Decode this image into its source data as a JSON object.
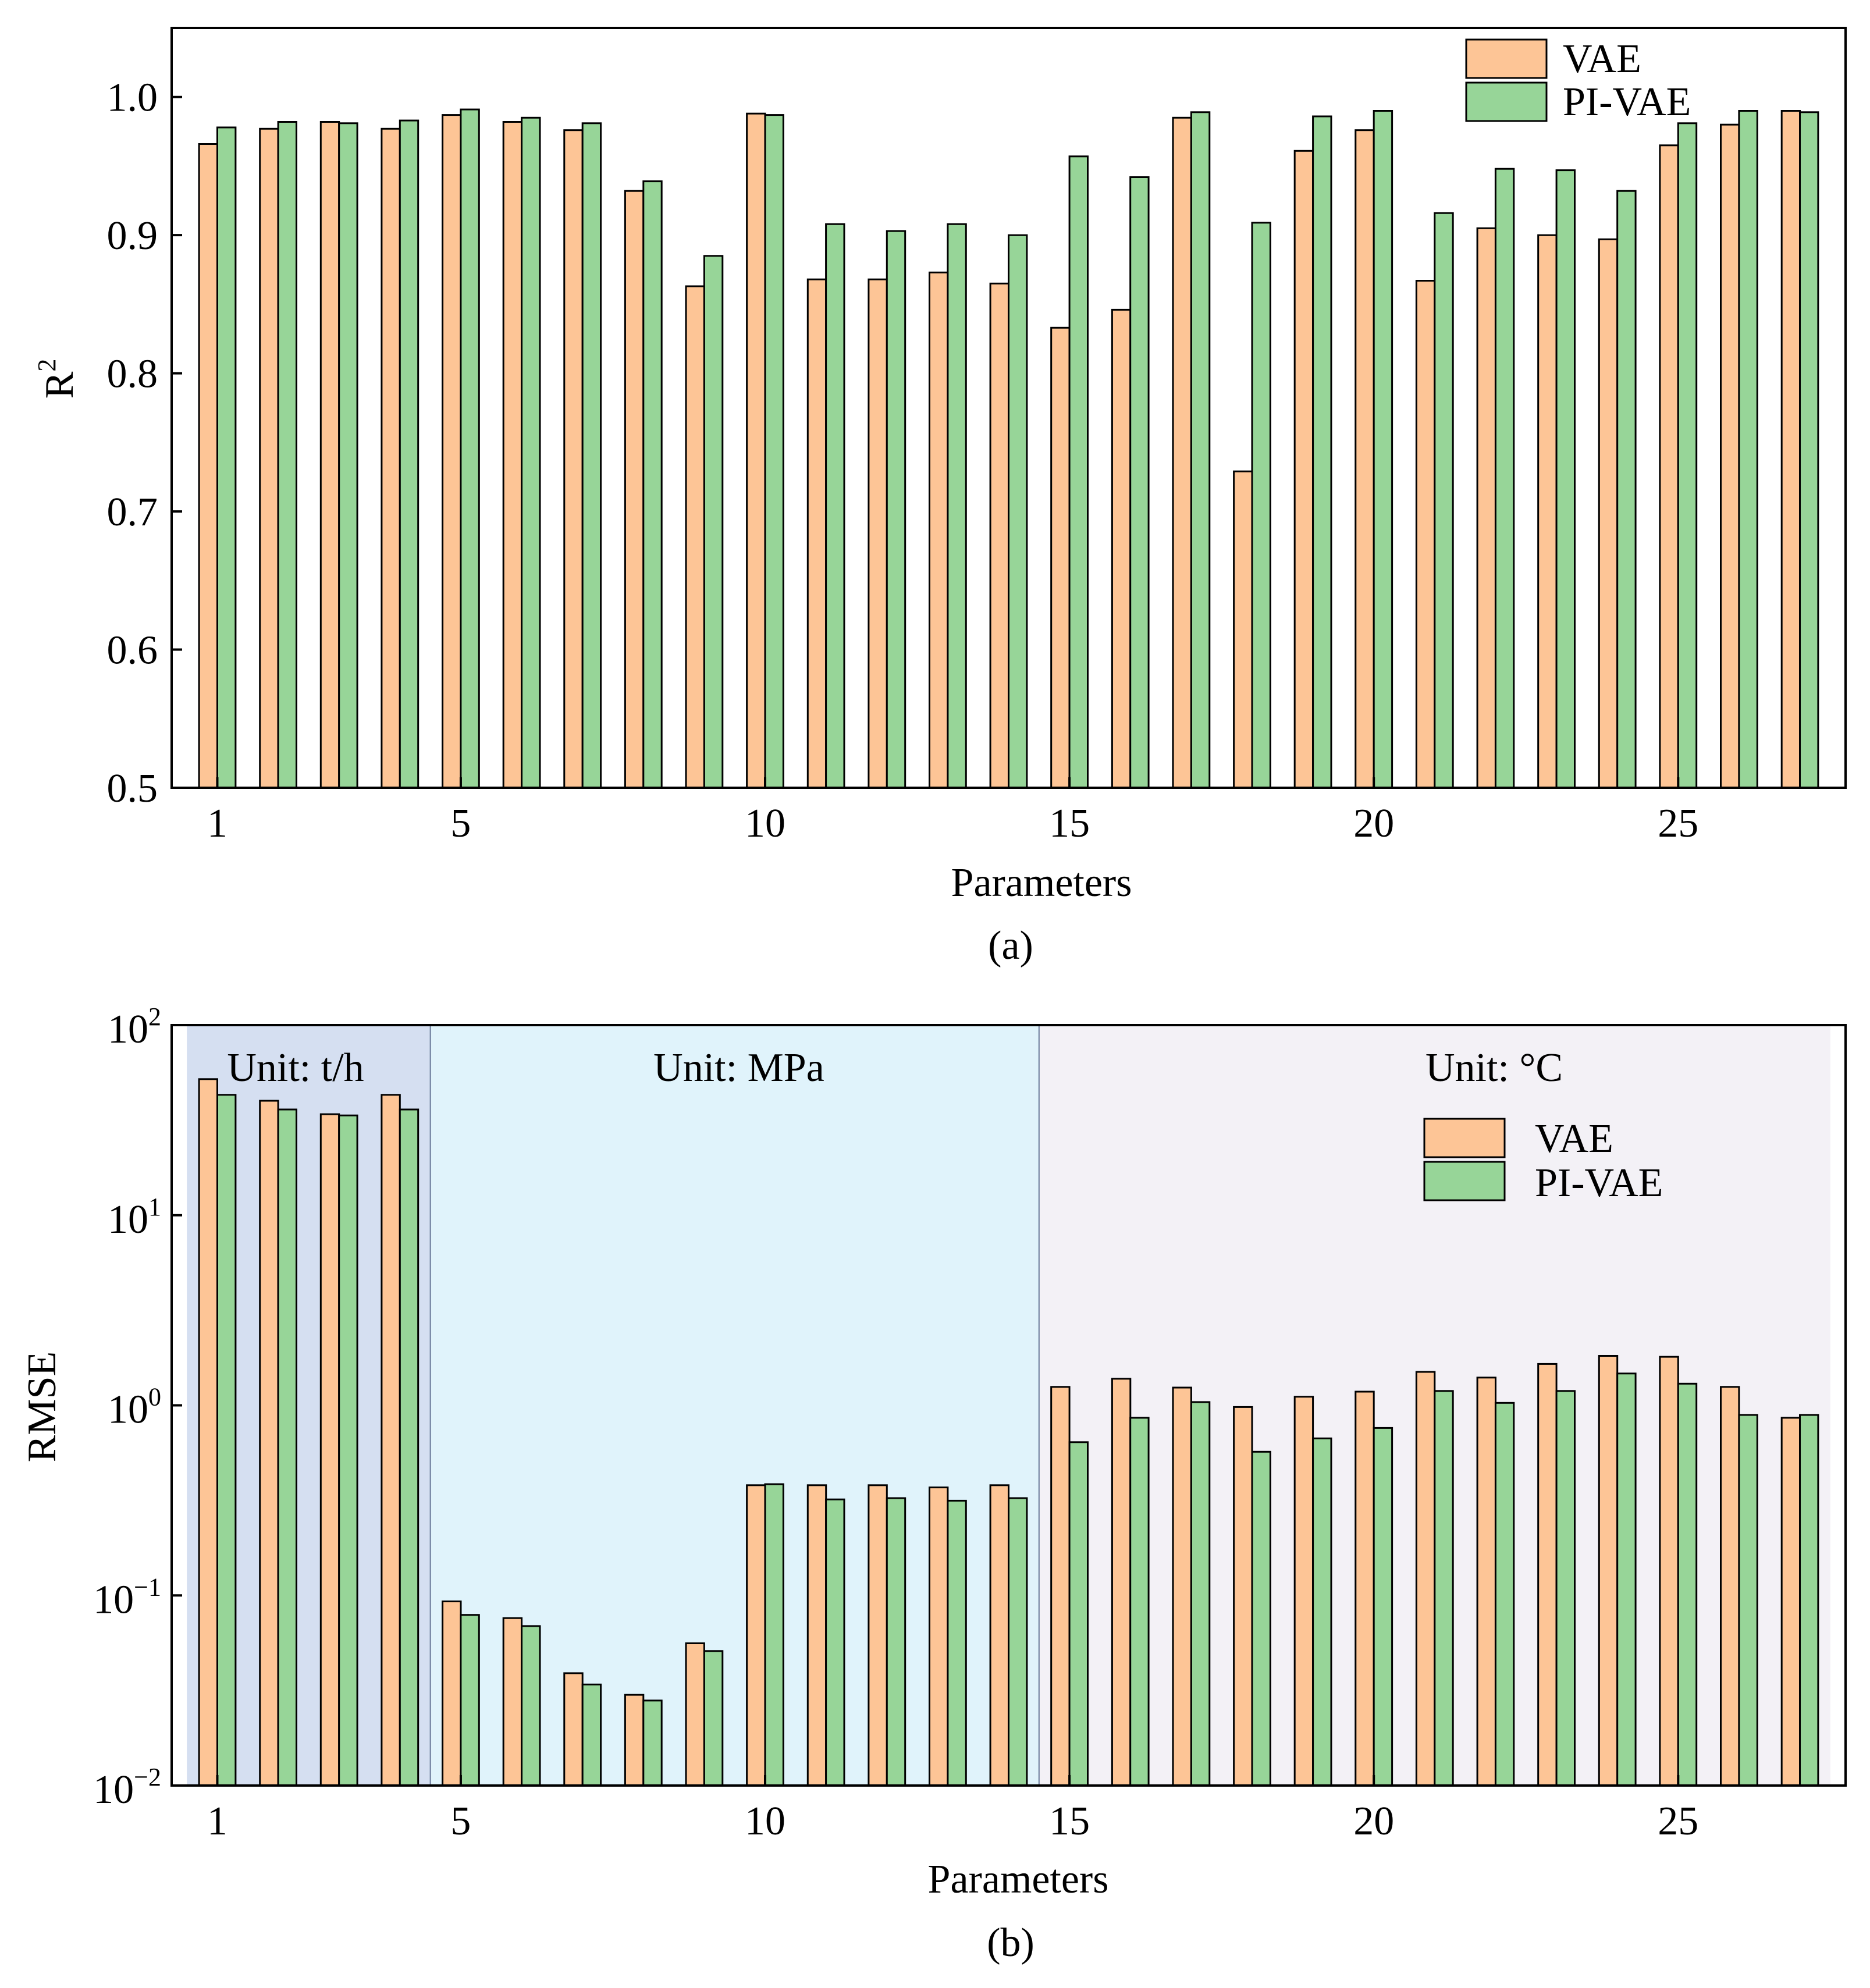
{
  "colors": {
    "vae": "#FDC596",
    "pi_vae": "#97D598",
    "region_th": "#D5DFF1",
    "region_mpa": "#E0F3FB",
    "region_c": "#F3F1F6"
  },
  "chart_data": [
    {
      "type": "bar",
      "panel_label": "(a)",
      "xlabel": "Parameters",
      "ylabel_base": "R",
      "ylabel_sup": "2",
      "ylim": [
        0.5,
        1.05
      ],
      "yticks": [
        "0.5",
        "0.6",
        "0.7",
        "0.8",
        "0.9",
        "1.0"
      ],
      "ytick_values": [
        0.5,
        0.6,
        0.7,
        0.8,
        0.9,
        1.0
      ],
      "xticks": [
        "1",
        "5",
        "10",
        "15",
        "20",
        "25"
      ],
      "xtick_values": [
        1,
        5,
        10,
        15,
        20,
        25
      ],
      "categories": [
        1,
        2,
        3,
        4,
        5,
        6,
        7,
        8,
        9,
        10,
        11,
        12,
        13,
        14,
        15,
        16,
        17,
        18,
        19,
        20,
        21,
        22,
        23,
        24,
        25,
        26,
        27
      ],
      "legend": [
        "VAE",
        "PI-VAE"
      ],
      "series": [
        {
          "name": "VAE",
          "values": [
            0.966,
            0.977,
            0.982,
            0.977,
            0.987,
            0.982,
            0.976,
            0.932,
            0.863,
            0.988,
            0.868,
            0.868,
            0.873,
            0.865,
            0.833,
            0.846,
            0.985,
            0.729,
            0.961,
            0.976,
            0.867,
            0.905,
            0.9,
            0.897,
            0.965,
            0.98,
            0.99
          ]
        },
        {
          "name": "PI-VAE",
          "values": [
            0.978,
            0.982,
            0.981,
            0.983,
            0.991,
            0.985,
            0.981,
            0.939,
            0.885,
            0.987,
            0.908,
            0.903,
            0.908,
            0.9,
            0.957,
            0.942,
            0.989,
            0.909,
            0.986,
            0.99,
            0.916,
            0.948,
            0.947,
            0.932,
            0.981,
            0.99,
            0.989
          ]
        }
      ]
    },
    {
      "type": "bar",
      "scale": "log",
      "panel_label": "(b)",
      "xlabel": "Parameters",
      "ylabel": "RMSE",
      "ylim": [
        0.01,
        100
      ],
      "ytick_base": "10",
      "ytick_exponents": [
        "−2",
        "−1",
        "0",
        "1",
        "2"
      ],
      "ytick_values": [
        0.01,
        0.1,
        1,
        10,
        100
      ],
      "xticks": [
        "1",
        "5",
        "10",
        "15",
        "20",
        "25"
      ],
      "xtick_values": [
        1,
        5,
        10,
        15,
        20,
        25
      ],
      "categories": [
        1,
        2,
        3,
        4,
        5,
        6,
        7,
        8,
        9,
        10,
        11,
        12,
        13,
        14,
        15,
        16,
        17,
        18,
        19,
        20,
        21,
        22,
        23,
        24,
        25,
        26,
        27
      ],
      "legend": [
        "VAE",
        "PI-VAE"
      ],
      "regions": [
        {
          "label": "Unit: t/h",
          "from": 0.5,
          "to": 4.5
        },
        {
          "label": "Unit: MPa",
          "from": 4.5,
          "to": 14.5
        },
        {
          "label": "Unit: °C",
          "from": 14.5,
          "to": 27.5
        }
      ],
      "series": [
        {
          "name": "VAE",
          "values": [
            52,
            40,
            34,
            43,
            0.093,
            0.076,
            0.039,
            0.03,
            0.056,
            0.38,
            0.38,
            0.38,
            0.37,
            0.38,
            1.25,
            1.38,
            1.24,
            0.98,
            1.11,
            1.18,
            1.5,
            1.4,
            1.65,
            1.82,
            1.8,
            1.25,
            0.86
          ]
        },
        {
          "name": "PI-VAE",
          "values": [
            43,
            36,
            33.5,
            36,
            0.079,
            0.069,
            0.034,
            0.028,
            0.051,
            0.385,
            0.32,
            0.325,
            0.315,
            0.325,
            0.64,
            0.86,
            1.04,
            0.57,
            0.67,
            0.76,
            1.19,
            1.03,
            1.19,
            1.47,
            1.3,
            0.89,
            0.89
          ]
        }
      ]
    }
  ]
}
